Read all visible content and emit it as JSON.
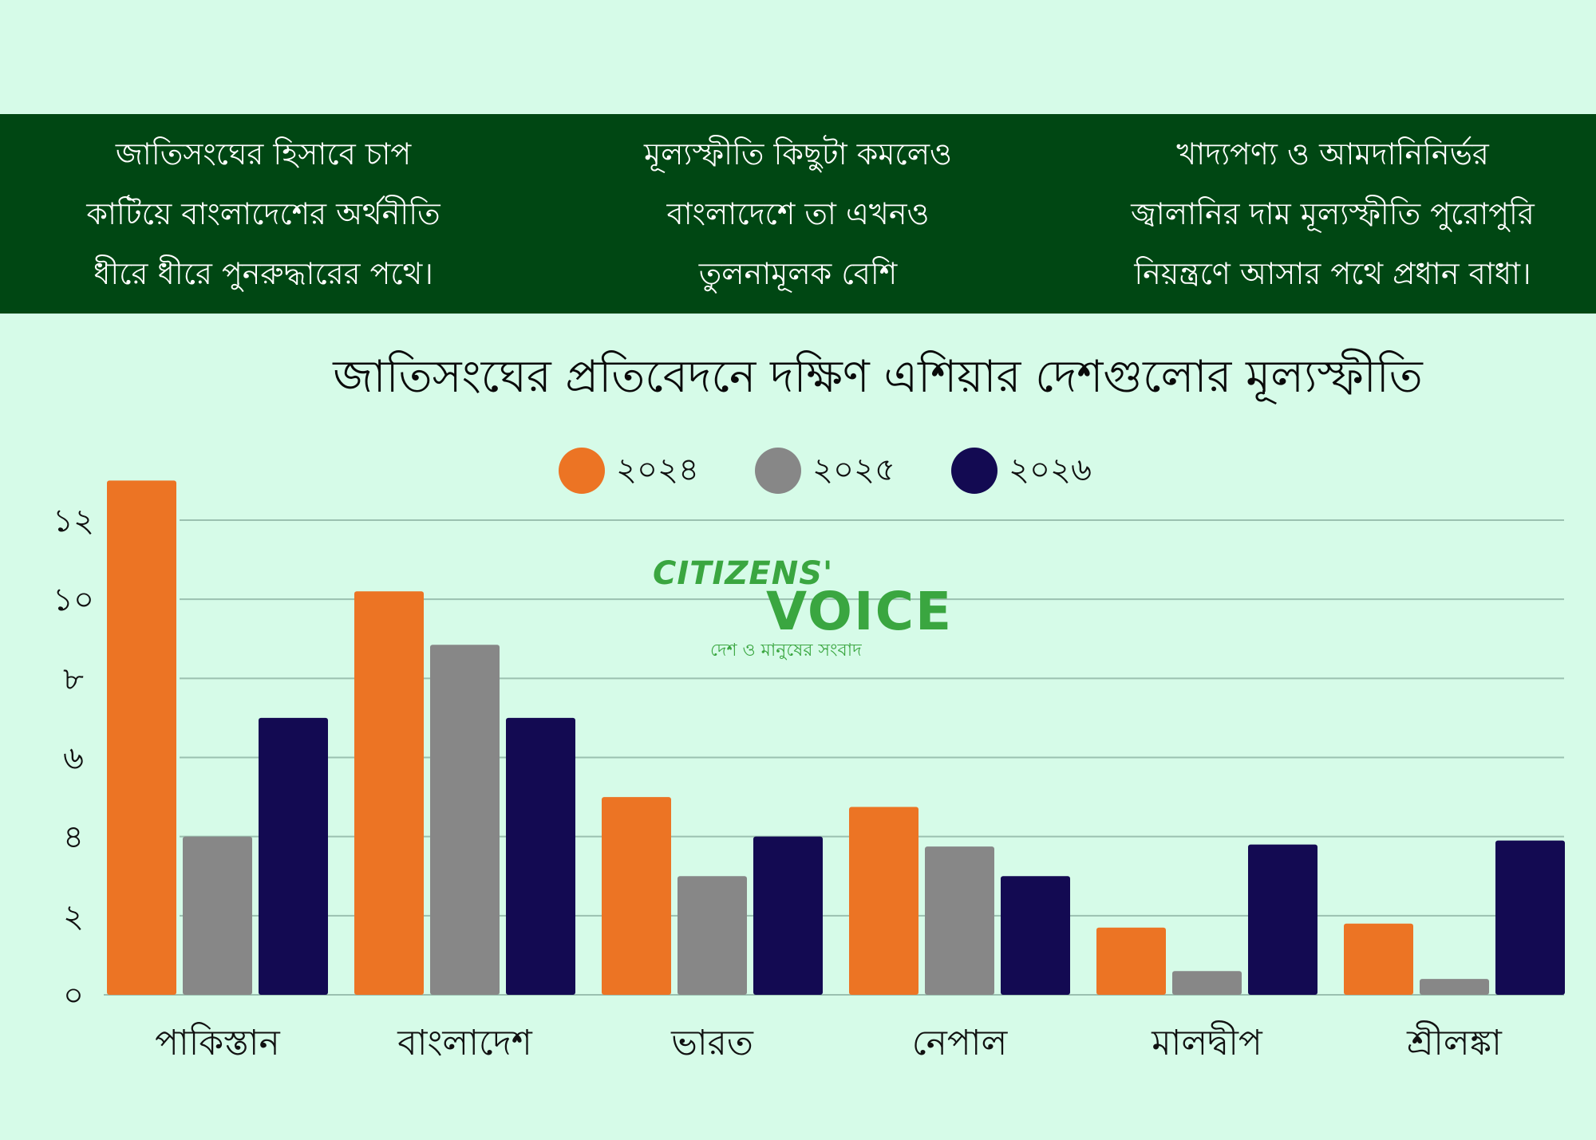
{
  "banner": {
    "columns": [
      {
        "lines": [
          "জাতিসংঘের হিসাবে চাপ",
          "কাটিয়ে বাংলাদেশের অর্থনীতি",
          "ধীরে ধীরে পুনরুদ্ধারের পথে।"
        ]
      },
      {
        "lines": [
          "মূল্যস্ফীতি কিছুটা কমলেও",
          "বাংলাদেশে তা এখনও",
          "তুলনামূলক বেশি"
        ]
      },
      {
        "lines": [
          "খাদ্যপণ্য ও আমদানিনির্ভর",
          "জ্বালানির দাম মূল্যস্ফীতি পুরোপুরি",
          "নিয়ন্ত্রণে আসার পথে প্রধান বাধা।"
        ]
      }
    ]
  },
  "watermark": {
    "line1": "CITIZENS'",
    "line2": "VOICE",
    "tagline": "দেশ ও মানুষের সংবাদ"
  },
  "colors": {
    "background": "#d6fbe8",
    "banner": "#004713",
    "s2024": "#ec7424",
    "s2025": "#878787",
    "s2026": "#130a52",
    "grid": "#9bc0b0",
    "brand": "#3aa640"
  },
  "chart_data": {
    "type": "bar",
    "title": "জাতিসংঘের প্রতিবেদনে দক্ষিণ এশিয়ার দেশগুলোর মূল্যস্ফীতি",
    "xlabel": "",
    "ylabel": "",
    "categories": [
      "পাকিস্তান",
      "বাংলাদেশ",
      "ভারত",
      "নেপাল",
      "মালদ্বীপ",
      "শ্রীলঙ্কা"
    ],
    "series": [
      {
        "name": "২০২৪",
        "color": "#ec7424",
        "values": [
          13.0,
          10.2,
          5.0,
          4.75,
          1.7,
          1.8
        ]
      },
      {
        "name": "২০২৫",
        "color": "#878787",
        "values": [
          4.0,
          8.85,
          3.0,
          3.75,
          0.6,
          0.4
        ]
      },
      {
        "name": "২০২৬",
        "color": "#130a52",
        "values": [
          7.0,
          7.0,
          4.0,
          3.0,
          3.8,
          3.9
        ]
      }
    ],
    "ylim": [
      0,
      12
    ],
    "yticks": [
      0,
      2,
      4,
      6,
      8,
      10,
      12
    ],
    "ytick_labels": [
      "০",
      "২",
      "৪",
      "৬",
      "৮",
      "১০",
      "১২"
    ],
    "grid": true,
    "legend_position": "top-center"
  }
}
